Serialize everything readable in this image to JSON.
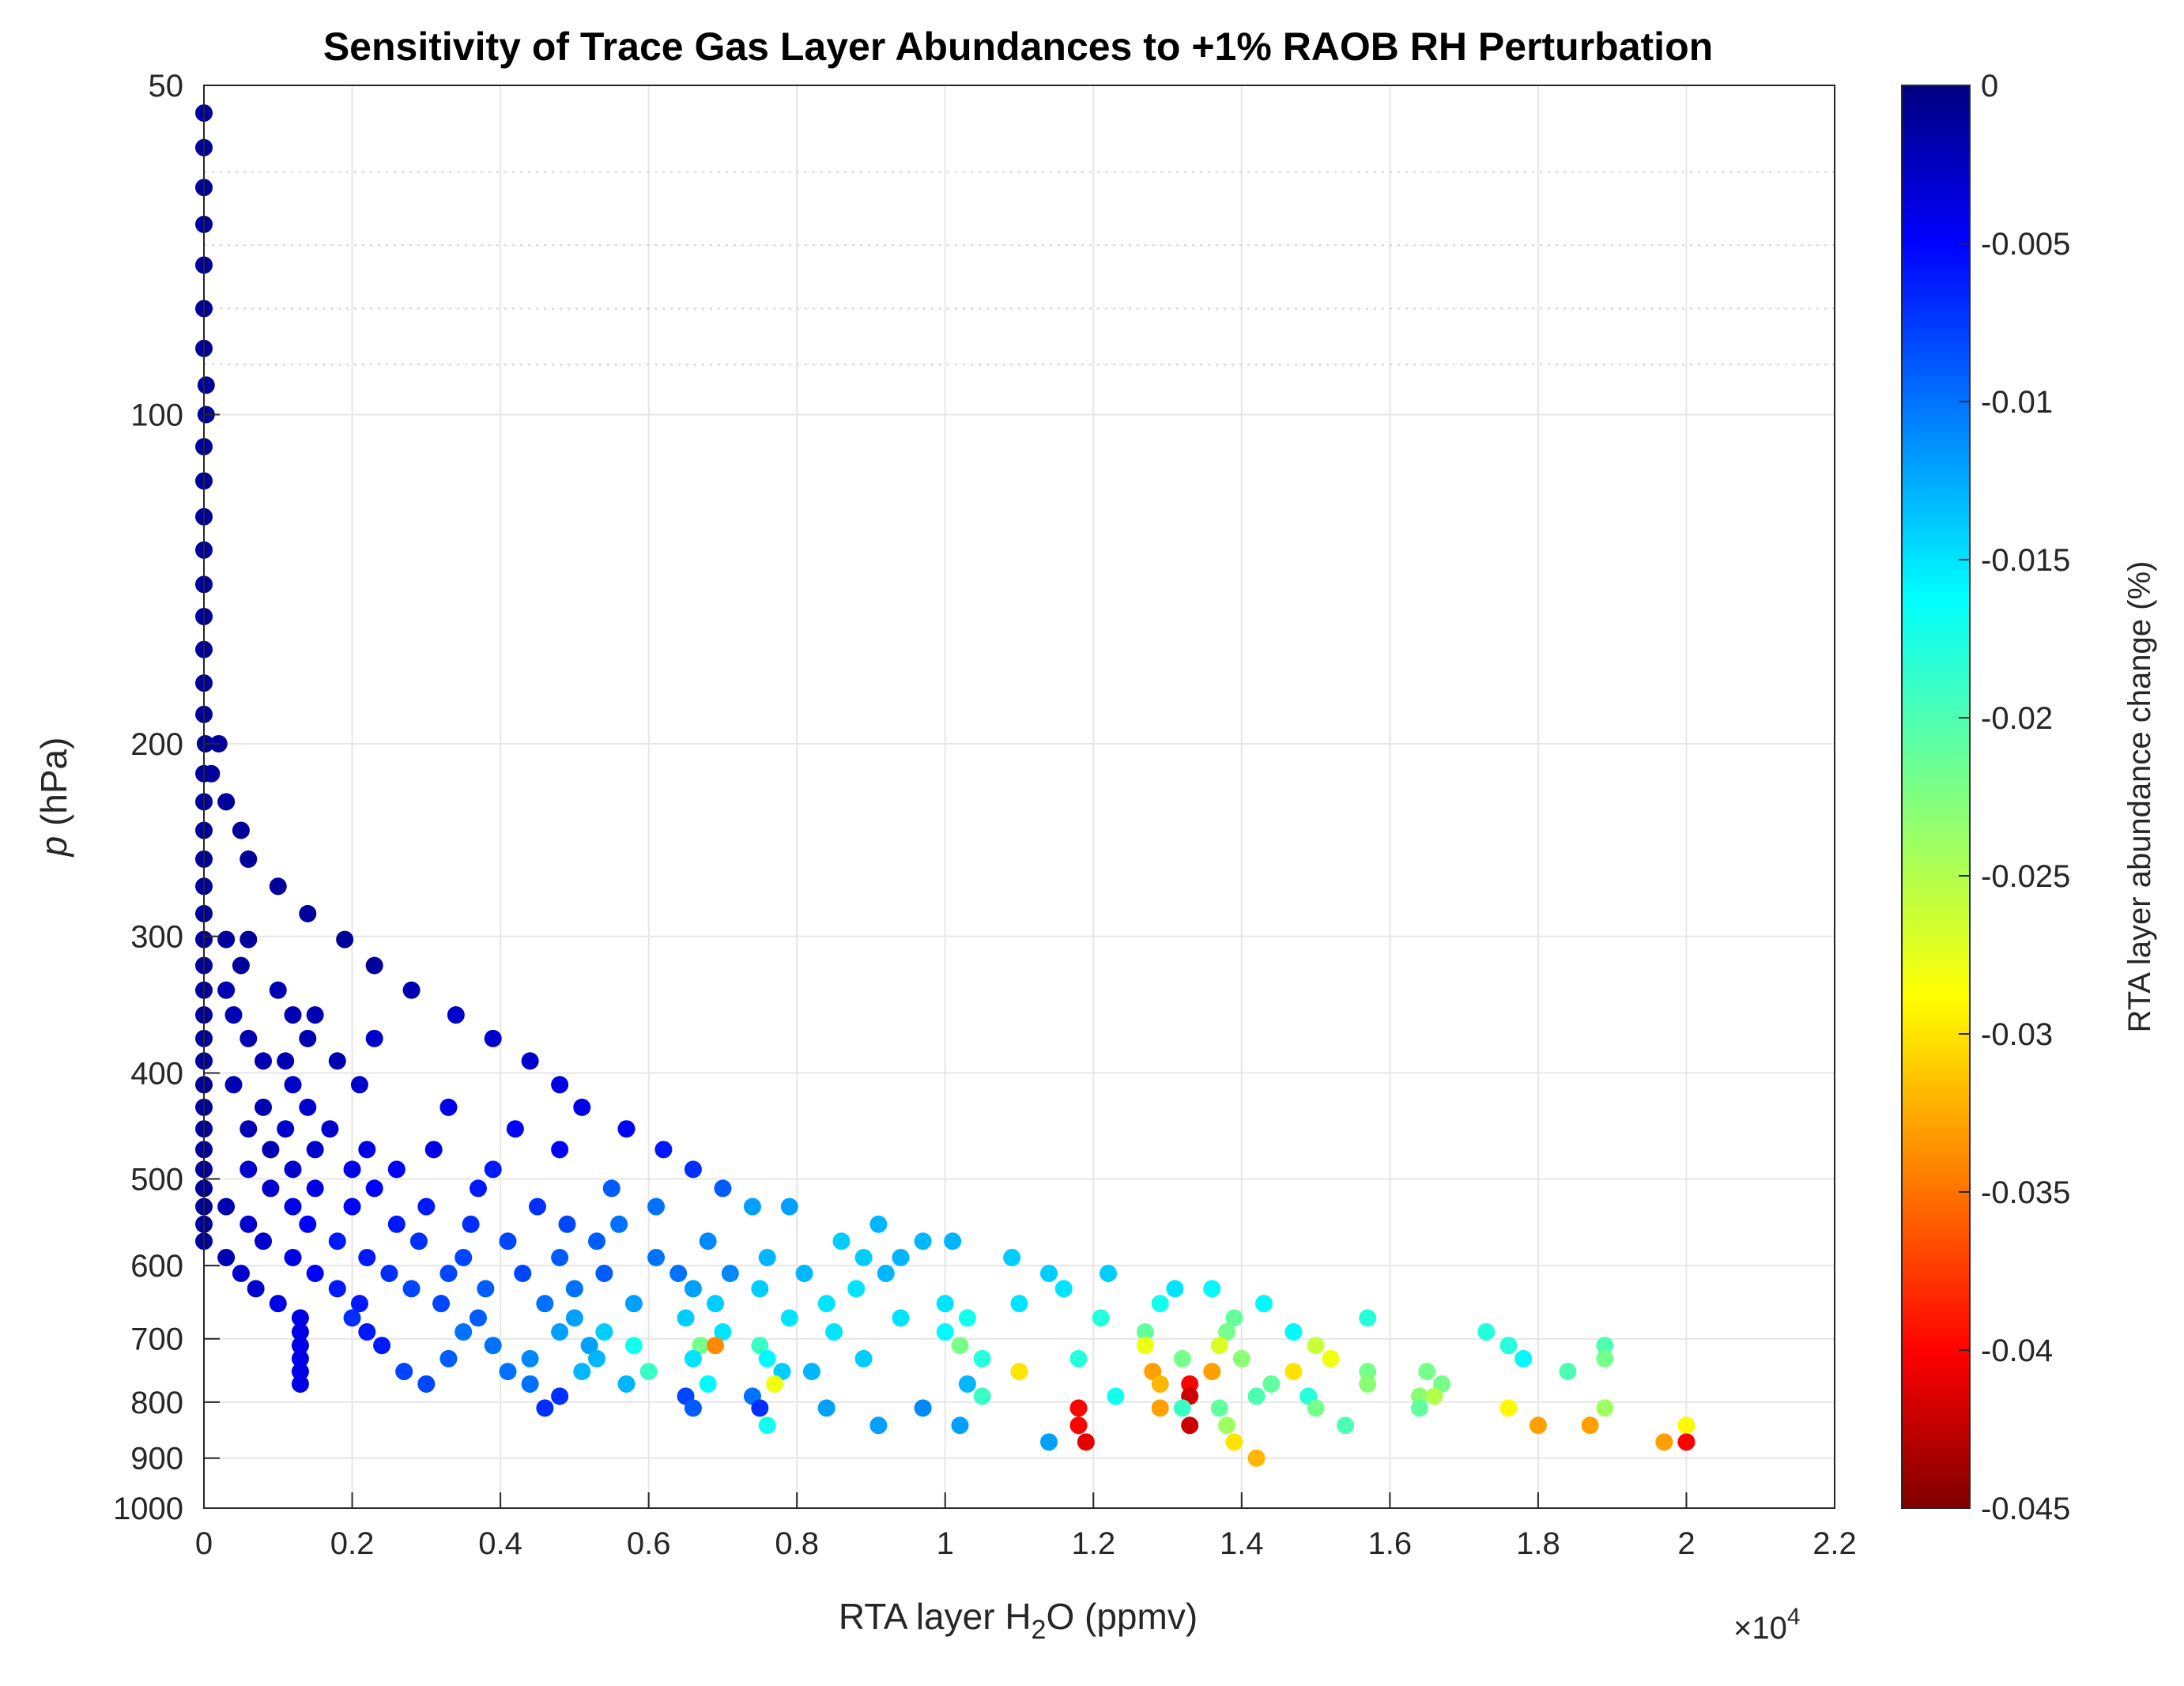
{
  "chart_data": {
    "type": "scatter",
    "title": "Sensitivity of Trace Gas Layer Abundances to +1% RAOB RH Perturbation",
    "xlabel_main": "RTA layer H",
    "xlabel_sub": "2",
    "xlabel_rest": "O (ppmv)",
    "ylabel_italic": "p",
    "ylabel_rest": " (hPa)",
    "x_multiplier": "×10",
    "x_multiplier_exp": "4",
    "xlim": [
      0,
      22000
    ],
    "ylim": [
      50,
      1000
    ],
    "yscale": "log",
    "y_reversed": true,
    "x_ticks": [
      0,
      2000,
      4000,
      6000,
      8000,
      10000,
      12000,
      14000,
      16000,
      18000,
      20000,
      22000
    ],
    "x_tick_labels": [
      "0",
      "0.2",
      "0.4",
      "0.6",
      "0.8",
      "1",
      "1.2",
      "1.4",
      "1.6",
      "1.8",
      "2",
      "2.2"
    ],
    "y_ticks": [
      50,
      100,
      200,
      300,
      400,
      500,
      600,
      700,
      800,
      900,
      1000
    ],
    "y_tick_labels": [
      "50",
      "100",
      "200",
      "300",
      "400",
      "500",
      "600",
      "700",
      "800",
      "900",
      "1000"
    ],
    "minor_y": [
      60,
      70,
      80,
      90
    ],
    "colorbar": {
      "label": "RTA layer abundance change (%)",
      "colormap": "jet-reversed",
      "range": [
        -0.045,
        0
      ],
      "ticks": [
        0,
        -0.005,
        -0.01,
        -0.015,
        -0.02,
        -0.025,
        -0.03,
        -0.035,
        -0.04,
        -0.045
      ],
      "tick_labels": [
        "0",
        "-0.005",
        "-0.01",
        "-0.015",
        "-0.02",
        "-0.025",
        "-0.03",
        "-0.035",
        "-0.04",
        "-0.045"
      ]
    },
    "points": [
      [
        0,
        53,
        -0.001
      ],
      [
        0,
        57,
        -0.001
      ],
      [
        0,
        62,
        -0.001
      ],
      [
        0,
        67,
        -0.001
      ],
      [
        0,
        73,
        -0.001
      ],
      [
        0,
        80,
        -0.001
      ],
      [
        0,
        87,
        -0.001
      ],
      [
        30,
        94,
        -0.001
      ],
      [
        30,
        100,
        -0.001
      ],
      [
        0,
        107,
        -0.001
      ],
      [
        0,
        115,
        -0.001
      ],
      [
        0,
        124,
        -0.001
      ],
      [
        0,
        133,
        -0.001
      ],
      [
        0,
        143,
        -0.001
      ],
      [
        0,
        153,
        -0.001
      ],
      [
        0,
        164,
        -0.001
      ],
      [
        0,
        176,
        -0.001
      ],
      [
        0,
        188,
        -0.001
      ],
      [
        20,
        200,
        -0.001
      ],
      [
        200,
        200,
        -0.001
      ],
      [
        0,
        213,
        -0.001
      ],
      [
        100,
        213,
        -0.001
      ],
      [
        0,
        226,
        -0.001
      ],
      [
        300,
        226,
        -0.001
      ],
      [
        0,
        240,
        -0.001
      ],
      [
        500,
        240,
        -0.001
      ],
      [
        0,
        255,
        -0.001
      ],
      [
        600,
        255,
        -0.001
      ],
      [
        0,
        270,
        -0.001
      ],
      [
        1000,
        270,
        -0.001
      ],
      [
        0,
        286,
        -0.001
      ],
      [
        1400,
        286,
        -0.001
      ],
      [
        0,
        302,
        -0.001
      ],
      [
        300,
        302,
        -0.001
      ],
      [
        600,
        302,
        -0.001
      ],
      [
        1900,
        302,
        -0.001
      ],
      [
        0,
        319,
        -0.001
      ],
      [
        500,
        319,
        -0.001
      ],
      [
        2300,
        319,
        -0.001
      ],
      [
        0,
        336,
        -0.001
      ],
      [
        300,
        336,
        -0.002
      ],
      [
        1000,
        336,
        -0.002
      ],
      [
        2800,
        336,
        -0.002
      ],
      [
        0,
        354,
        -0.001
      ],
      [
        400,
        354,
        -0.002
      ],
      [
        1200,
        354,
        -0.002
      ],
      [
        1500,
        354,
        -0.002
      ],
      [
        3400,
        354,
        -0.003
      ],
      [
        0,
        372,
        -0.001
      ],
      [
        600,
        372,
        -0.002
      ],
      [
        1400,
        372,
        -0.002
      ],
      [
        2300,
        372,
        -0.003
      ],
      [
        3900,
        372,
        -0.003
      ],
      [
        0,
        390,
        -0.001
      ],
      [
        800,
        390,
        -0.002
      ],
      [
        1100,
        390,
        -0.002
      ],
      [
        1800,
        390,
        -0.002
      ],
      [
        4400,
        390,
        -0.003
      ],
      [
        0,
        410,
        -0.001
      ],
      [
        400,
        410,
        -0.002
      ],
      [
        1200,
        410,
        -0.003
      ],
      [
        2100,
        410,
        -0.003
      ],
      [
        4800,
        410,
        -0.004
      ],
      [
        0,
        430,
        -0.001
      ],
      [
        800,
        430,
        -0.002
      ],
      [
        1400,
        430,
        -0.003
      ],
      [
        3300,
        430,
        -0.004
      ],
      [
        5100,
        430,
        -0.004
      ],
      [
        0,
        450,
        -0.001
      ],
      [
        600,
        450,
        -0.002
      ],
      [
        1100,
        450,
        -0.003
      ],
      [
        1700,
        450,
        -0.003
      ],
      [
        4200,
        450,
        -0.005
      ],
      [
        5700,
        450,
        -0.005
      ],
      [
        0,
        470,
        -0.001
      ],
      [
        900,
        470,
        -0.002
      ],
      [
        1500,
        470,
        -0.003
      ],
      [
        2200,
        470,
        -0.004
      ],
      [
        3100,
        470,
        -0.004
      ],
      [
        4800,
        470,
        -0.005
      ],
      [
        6200,
        470,
        -0.006
      ],
      [
        0,
        490,
        -0.001
      ],
      [
        600,
        490,
        -0.003
      ],
      [
        1200,
        490,
        -0.003
      ],
      [
        2000,
        490,
        -0.004
      ],
      [
        2600,
        490,
        -0.005
      ],
      [
        3900,
        490,
        -0.006
      ],
      [
        6600,
        490,
        -0.007
      ],
      [
        0,
        510,
        -0.001
      ],
      [
        900,
        510,
        -0.003
      ],
      [
        1500,
        510,
        -0.004
      ],
      [
        2300,
        510,
        -0.005
      ],
      [
        3700,
        510,
        -0.006
      ],
      [
        5500,
        510,
        -0.009
      ],
      [
        7000,
        510,
        -0.009
      ],
      [
        0,
        530,
        -0.001
      ],
      [
        300,
        530,
        -0.002
      ],
      [
        1200,
        530,
        -0.004
      ],
      [
        2000,
        530,
        -0.005
      ],
      [
        3000,
        530,
        -0.006
      ],
      [
        4500,
        530,
        -0.007
      ],
      [
        6100,
        530,
        -0.01
      ],
      [
        7400,
        530,
        -0.012
      ],
      [
        7900,
        530,
        -0.012
      ],
      [
        0,
        550,
        -0.001
      ],
      [
        600,
        550,
        -0.003
      ],
      [
        1400,
        550,
        -0.005
      ],
      [
        2600,
        550,
        -0.006
      ],
      [
        3600,
        550,
        -0.007
      ],
      [
        4900,
        550,
        -0.008
      ],
      [
        5600,
        550,
        -0.01
      ],
      [
        9100,
        550,
        -0.013
      ],
      [
        0,
        570,
        -0.001
      ],
      [
        800,
        570,
        -0.003
      ],
      [
        1800,
        570,
        -0.006
      ],
      [
        2900,
        570,
        -0.007
      ],
      [
        4100,
        570,
        -0.008
      ],
      [
        5300,
        570,
        -0.009
      ],
      [
        6800,
        570,
        -0.011
      ],
      [
        8600,
        570,
        -0.014
      ],
      [
        9700,
        570,
        -0.013
      ],
      [
        10100,
        570,
        -0.013
      ],
      [
        300,
        590,
        -0.002
      ],
      [
        1200,
        590,
        -0.004
      ],
      [
        2200,
        590,
        -0.006
      ],
      [
        3500,
        590,
        -0.008
      ],
      [
        4800,
        590,
        -0.009
      ],
      [
        6100,
        590,
        -0.01
      ],
      [
        7600,
        590,
        -0.013
      ],
      [
        8900,
        590,
        -0.014
      ],
      [
        9400,
        590,
        -0.013
      ],
      [
        10900,
        590,
        -0.014
      ],
      [
        500,
        610,
        -0.003
      ],
      [
        1500,
        610,
        -0.005
      ],
      [
        2500,
        610,
        -0.007
      ],
      [
        3300,
        610,
        -0.008
      ],
      [
        4300,
        610,
        -0.008
      ],
      [
        5400,
        610,
        -0.009
      ],
      [
        6400,
        610,
        -0.01
      ],
      [
        7100,
        610,
        -0.011
      ],
      [
        8100,
        610,
        -0.013
      ],
      [
        9200,
        610,
        -0.013
      ],
      [
        11400,
        610,
        -0.014
      ],
      [
        12200,
        610,
        -0.014
      ],
      [
        700,
        630,
        -0.003
      ],
      [
        1800,
        630,
        -0.006
      ],
      [
        2800,
        630,
        -0.008
      ],
      [
        3800,
        630,
        -0.009
      ],
      [
        5000,
        630,
        -0.01
      ],
      [
        6600,
        630,
        -0.012
      ],
      [
        7500,
        630,
        -0.014
      ],
      [
        8800,
        630,
        -0.015
      ],
      [
        11600,
        630,
        -0.015
      ],
      [
        13100,
        630,
        -0.015
      ],
      [
        13600,
        630,
        -0.016
      ],
      [
        1000,
        650,
        -0.004
      ],
      [
        2100,
        650,
        -0.006
      ],
      [
        3200,
        650,
        -0.008
      ],
      [
        4600,
        650,
        -0.01
      ],
      [
        5800,
        650,
        -0.012
      ],
      [
        6900,
        650,
        -0.014
      ],
      [
        8400,
        650,
        -0.015
      ],
      [
        10000,
        650,
        -0.015
      ],
      [
        11000,
        650,
        -0.015
      ],
      [
        12900,
        650,
        -0.017
      ],
      [
        14300,
        650,
        -0.016
      ],
      [
        1300,
        670,
        -0.004
      ],
      [
        2000,
        670,
        -0.007
      ],
      [
        3700,
        670,
        -0.009
      ],
      [
        5000,
        670,
        -0.012
      ],
      [
        6500,
        670,
        -0.014
      ],
      [
        7900,
        670,
        -0.015
      ],
      [
        9400,
        670,
        -0.015
      ],
      [
        10300,
        670,
        -0.017
      ],
      [
        12100,
        670,
        -0.018
      ],
      [
        13900,
        670,
        -0.021
      ],
      [
        15700,
        670,
        -0.018
      ],
      [
        1300,
        690,
        -0.004
      ],
      [
        2200,
        690,
        -0.006
      ],
      [
        3500,
        690,
        -0.01
      ],
      [
        4800,
        690,
        -0.012
      ],
      [
        5400,
        690,
        -0.014
      ],
      [
        7000,
        690,
        -0.015
      ],
      [
        8500,
        690,
        -0.015
      ],
      [
        10000,
        690,
        -0.016
      ],
      [
        12700,
        690,
        -0.021
      ],
      [
        13800,
        690,
        -0.022
      ],
      [
        14700,
        690,
        -0.016
      ],
      [
        17300,
        690,
        -0.018
      ],
      [
        1300,
        710,
        -0.004
      ],
      [
        2400,
        710,
        -0.006
      ],
      [
        3900,
        710,
        -0.01
      ],
      [
        5200,
        710,
        -0.012
      ],
      [
        5800,
        710,
        -0.017
      ],
      [
        6700,
        710,
        -0.022
      ],
      [
        6900,
        710,
        -0.034
      ],
      [
        7500,
        710,
        -0.019
      ],
      [
        10200,
        710,
        -0.022
      ],
      [
        12700,
        710,
        -0.028
      ],
      [
        13700,
        710,
        -0.027
      ],
      [
        15000,
        710,
        -0.026
      ],
      [
        17600,
        710,
        -0.018
      ],
      [
        18900,
        710,
        -0.02
      ],
      [
        1300,
        730,
        -0.004
      ],
      [
        3300,
        730,
        -0.009
      ],
      [
        4400,
        730,
        -0.011
      ],
      [
        5300,
        730,
        -0.013
      ],
      [
        6600,
        730,
        -0.015
      ],
      [
        7600,
        730,
        -0.016
      ],
      [
        8900,
        730,
        -0.014
      ],
      [
        10500,
        730,
        -0.018
      ],
      [
        11800,
        730,
        -0.018
      ],
      [
        13200,
        730,
        -0.022
      ],
      [
        14000,
        730,
        -0.023
      ],
      [
        15200,
        730,
        -0.028
      ],
      [
        17800,
        730,
        -0.016
      ],
      [
        18900,
        730,
        -0.022
      ],
      [
        1300,
        750,
        -0.004
      ],
      [
        2700,
        750,
        -0.008
      ],
      [
        4100,
        750,
        -0.01
      ],
      [
        5100,
        750,
        -0.013
      ],
      [
        6000,
        750,
        -0.019
      ],
      [
        7800,
        750,
        -0.014
      ],
      [
        8200,
        750,
        -0.013
      ],
      [
        11000,
        750,
        -0.03
      ],
      [
        12800,
        750,
        -0.033
      ],
      [
        13600,
        750,
        -0.033
      ],
      [
        14700,
        750,
        -0.03
      ],
      [
        15700,
        750,
        -0.022
      ],
      [
        16500,
        750,
        -0.022
      ],
      [
        18400,
        750,
        -0.02
      ],
      [
        1300,
        770,
        -0.004
      ],
      [
        3000,
        770,
        -0.008
      ],
      [
        4400,
        770,
        -0.01
      ],
      [
        5700,
        770,
        -0.013
      ],
      [
        6800,
        770,
        -0.016
      ],
      [
        7700,
        770,
        -0.028
      ],
      [
        10300,
        770,
        -0.013
      ],
      [
        12900,
        770,
        -0.032
      ],
      [
        13300,
        770,
        -0.04
      ],
      [
        14400,
        770,
        -0.021
      ],
      [
        15700,
        770,
        -0.023
      ],
      [
        16700,
        770,
        -0.022
      ],
      [
        4800,
        790,
        -0.007
      ],
      [
        6500,
        790,
        -0.008
      ],
      [
        7400,
        790,
        -0.01
      ],
      [
        10500,
        790,
        -0.019
      ],
      [
        12300,
        790,
        -0.017
      ],
      [
        13300,
        790,
        -0.042
      ],
      [
        14200,
        790,
        -0.02
      ],
      [
        14900,
        790,
        -0.018
      ],
      [
        16400,
        790,
        -0.023
      ],
      [
        16600,
        790,
        -0.025
      ],
      [
        4600,
        810,
        -0.007
      ],
      [
        6600,
        810,
        -0.009
      ],
      [
        7500,
        810,
        -0.007
      ],
      [
        8400,
        810,
        -0.012
      ],
      [
        9700,
        810,
        -0.011
      ],
      [
        11800,
        810,
        -0.04
      ],
      [
        12900,
        810,
        -0.033
      ],
      [
        13200,
        810,
        -0.019
      ],
      [
        13700,
        810,
        -0.021
      ],
      [
        15000,
        810,
        -0.022
      ],
      [
        16400,
        810,
        -0.021
      ],
      [
        17600,
        810,
        -0.029
      ],
      [
        18900,
        810,
        -0.024
      ],
      [
        7600,
        840,
        -0.017
      ],
      [
        9100,
        840,
        -0.012
      ],
      [
        10200,
        840,
        -0.012
      ],
      [
        11800,
        840,
        -0.04
      ],
      [
        13300,
        840,
        -0.042
      ],
      [
        13800,
        840,
        -0.024
      ],
      [
        15400,
        840,
        -0.02
      ],
      [
        18000,
        840,
        -0.033
      ],
      [
        18700,
        840,
        -0.033
      ],
      [
        20000,
        840,
        -0.029
      ],
      [
        11400,
        870,
        -0.012
      ],
      [
        11900,
        870,
        -0.041
      ],
      [
        13900,
        870,
        -0.03
      ],
      [
        19700,
        870,
        -0.033
      ],
      [
        20000,
        870,
        -0.04
      ],
      [
        14200,
        900,
        -0.032
      ]
    ]
  }
}
